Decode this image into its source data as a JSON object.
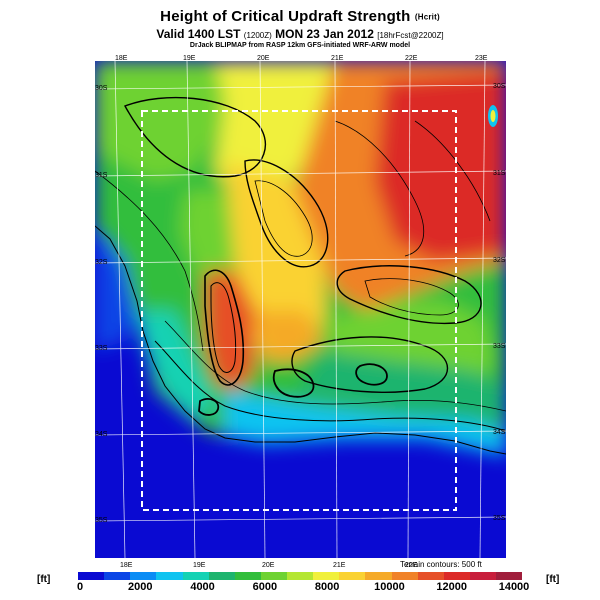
{
  "title": "Height of Critical Updraft Strength",
  "title_unit": "(Hcrit)",
  "subtitle_main": "Valid 1400 LST",
  "subtitle_code": "(1200Z)",
  "subtitle_date": "MON 23 Jan 2012",
  "subtitle_run": "[18hrFcst@2200Z]",
  "credit": "DrJack BLIPMAP from RASP 12km GFS-initiated WRF-ARW model",
  "terrain_note": "Terrain contours: 500 ft",
  "unit_left": "[ft]",
  "unit_right": "[ft]",
  "colorbar": {
    "colors": [
      "#0a0ad2",
      "#0a45e6",
      "#0a8cf5",
      "#0fc3f0",
      "#14d2b4",
      "#1eb46e",
      "#32be3c",
      "#6ed232",
      "#b4e632",
      "#f0f03c",
      "#fad232",
      "#f5aa28",
      "#f08228",
      "#e65028",
      "#dc2a28",
      "#c81e3c",
      "#a01e3c"
    ],
    "ticks": [
      "0",
      "2000",
      "4000",
      "6000",
      "8000",
      "10000",
      "12000",
      "14000"
    ]
  },
  "map": {
    "lon_labels_top": [
      "18E",
      "19E",
      "20E",
      "21E",
      "22E",
      "23E"
    ],
    "lon_labels_bottom": [
      "18E",
      "19E",
      "20E",
      "21E",
      "22E"
    ],
    "lat_labels_left": [
      "30S",
      "31S",
      "32S",
      "33S",
      "34S",
      "35S"
    ],
    "lat_labels_right": [
      "30S",
      "31S",
      "32S",
      "33S",
      "34S",
      "35S"
    ]
  }
}
